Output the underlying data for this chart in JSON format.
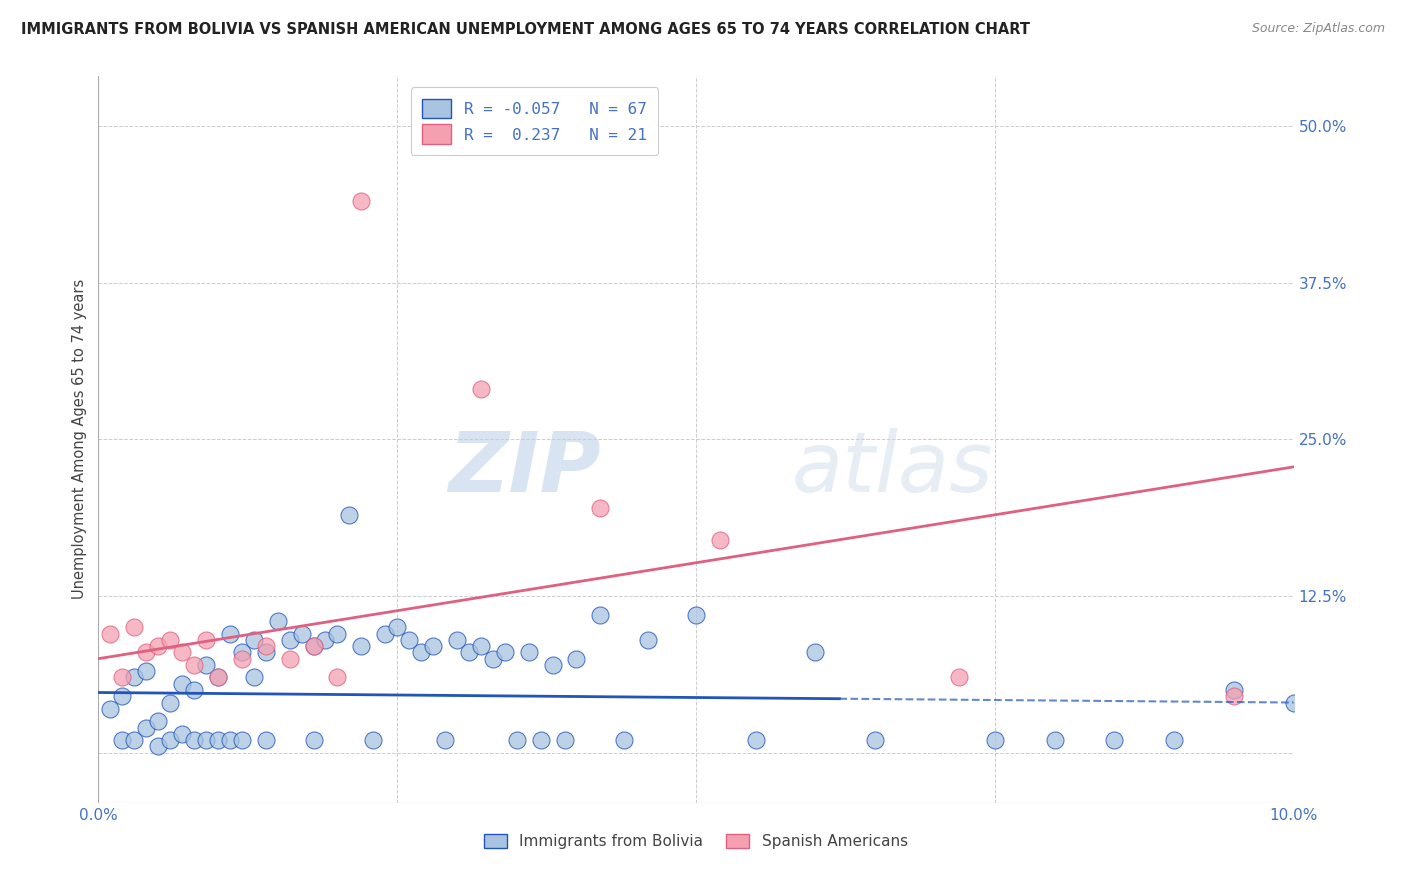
{
  "title": "IMMIGRANTS FROM BOLIVIA VS SPANISH AMERICAN UNEMPLOYMENT AMONG AGES 65 TO 74 YEARS CORRELATION CHART",
  "source": "Source: ZipAtlas.com",
  "ylabel": "Unemployment Among Ages 65 to 74 years",
  "ytick_values": [
    0.0,
    0.125,
    0.25,
    0.375,
    0.5
  ],
  "ytick_labels": [
    "",
    "12.5%",
    "25.0%",
    "37.5%",
    "50.0%"
  ],
  "xmin": 0.0,
  "xmax": 0.1,
  "ymin": -0.04,
  "ymax": 0.54,
  "legend_entry1": "R = -0.057   N = 67",
  "legend_entry2": "R =  0.237   N = 21",
  "legend_label1": "Immigrants from Bolivia",
  "legend_label2": "Spanish Americans",
  "color_blue": "#a8c4e0",
  "color_pink": "#f4a0b0",
  "line_color_blue": "#2255bb",
  "line_color_pink": "#e06080",
  "blue_line_x": [
    0.0,
    0.1
  ],
  "blue_line_y": [
    0.048,
    0.04
  ],
  "blue_line_solid_end": 0.062,
  "pink_line_x": [
    0.0,
    0.1
  ],
  "pink_line_y": [
    0.075,
    0.228
  ],
  "blue_x": [
    0.001,
    0.002,
    0.002,
    0.003,
    0.003,
    0.004,
    0.004,
    0.005,
    0.005,
    0.006,
    0.006,
    0.007,
    0.007,
    0.008,
    0.008,
    0.009,
    0.009,
    0.01,
    0.01,
    0.011,
    0.011,
    0.012,
    0.012,
    0.013,
    0.013,
    0.014,
    0.014,
    0.015,
    0.016,
    0.017,
    0.018,
    0.018,
    0.019,
    0.02,
    0.021,
    0.022,
    0.023,
    0.024,
    0.025,
    0.026,
    0.027,
    0.028,
    0.029,
    0.03,
    0.031,
    0.032,
    0.033,
    0.034,
    0.035,
    0.036,
    0.037,
    0.038,
    0.039,
    0.04,
    0.042,
    0.044,
    0.046,
    0.05,
    0.055,
    0.06,
    0.065,
    0.075,
    0.08,
    0.085,
    0.09,
    0.095,
    0.1
  ],
  "blue_y": [
    0.035,
    0.045,
    0.01,
    0.06,
    0.01,
    0.02,
    0.065,
    0.025,
    0.005,
    0.04,
    0.01,
    0.055,
    0.015,
    0.05,
    0.01,
    0.07,
    0.01,
    0.06,
    0.01,
    0.095,
    0.01,
    0.08,
    0.01,
    0.09,
    0.06,
    0.08,
    0.01,
    0.105,
    0.09,
    0.095,
    0.085,
    0.01,
    0.09,
    0.095,
    0.19,
    0.085,
    0.01,
    0.095,
    0.1,
    0.09,
    0.08,
    0.085,
    0.01,
    0.09,
    0.08,
    0.085,
    0.075,
    0.08,
    0.01,
    0.08,
    0.01,
    0.07,
    0.01,
    0.075,
    0.11,
    0.01,
    0.09,
    0.11,
    0.01,
    0.08,
    0.01,
    0.01,
    0.01,
    0.01,
    0.01,
    0.05,
    0.04
  ],
  "pink_x": [
    0.001,
    0.002,
    0.003,
    0.004,
    0.005,
    0.006,
    0.007,
    0.008,
    0.009,
    0.01,
    0.012,
    0.014,
    0.016,
    0.018,
    0.02,
    0.022,
    0.032,
    0.042,
    0.052,
    0.072,
    0.095
  ],
  "pink_y": [
    0.095,
    0.06,
    0.1,
    0.08,
    0.085,
    0.09,
    0.08,
    0.07,
    0.09,
    0.06,
    0.075,
    0.085,
    0.075,
    0.085,
    0.06,
    0.44,
    0.29,
    0.195,
    0.17,
    0.06,
    0.045
  ]
}
